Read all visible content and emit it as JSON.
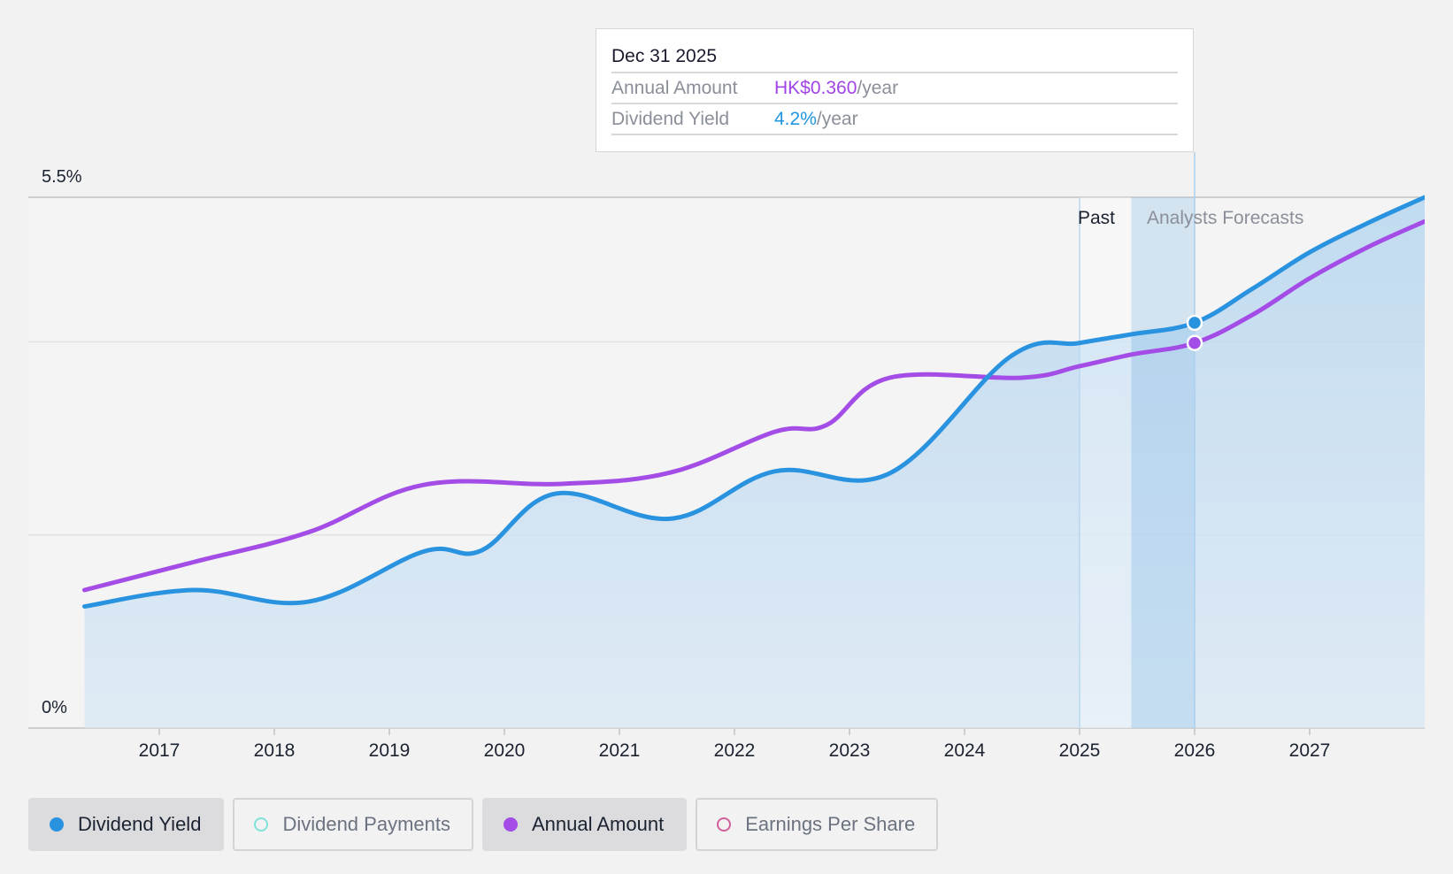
{
  "chart_data": {
    "type": "line",
    "title": "",
    "y_axis": {
      "min_label": "0%",
      "max_label": "5.5%",
      "ylim": [
        0,
        5.5
      ]
    },
    "x_ticks": [
      "2017",
      "2018",
      "2019",
      "2020",
      "2021",
      "2022",
      "2023",
      "2024",
      "2025",
      "2026",
      "2027"
    ],
    "past_label": "Past",
    "forecast_label": "Analysts Forecasts",
    "series": [
      {
        "name": "Dividend Yield",
        "color": "#2a93e0",
        "unit": "%",
        "points": [
          [
            2016.35,
            1.26
          ],
          [
            2017.3,
            1.43
          ],
          [
            2018.3,
            1.31
          ],
          [
            2019.3,
            1.83
          ],
          [
            2019.8,
            1.84
          ],
          [
            2020.45,
            2.43
          ],
          [
            2021.45,
            2.17
          ],
          [
            2022.35,
            2.66
          ],
          [
            2023.35,
            2.64
          ],
          [
            2024.4,
            3.85
          ],
          [
            2025.0,
            3.99
          ],
          [
            2025.45,
            4.08
          ],
          [
            2026.0,
            4.2
          ],
          [
            2026.5,
            4.55
          ],
          [
            2027.0,
            4.93
          ],
          [
            2027.5,
            5.23
          ],
          [
            2028.0,
            5.5
          ]
        ]
      },
      {
        "name": "Annual Amount",
        "color": "#a34de6",
        "unit": "HK$",
        "points": [
          [
            2016.35,
            1.43
          ],
          [
            2017.3,
            1.72
          ],
          [
            2018.3,
            2.03
          ],
          [
            2019.3,
            2.52
          ],
          [
            2020.5,
            2.53
          ],
          [
            2021.45,
            2.65
          ],
          [
            2022.35,
            3.07
          ],
          [
            2022.8,
            3.14
          ],
          [
            2023.35,
            3.63
          ],
          [
            2024.5,
            3.63
          ],
          [
            2025.0,
            3.75
          ],
          [
            2025.45,
            3.87
          ],
          [
            2026.0,
            3.99
          ],
          [
            2026.5,
            4.28
          ],
          [
            2027.0,
            4.66
          ],
          [
            2027.5,
            4.98
          ],
          [
            2028.0,
            5.25
          ]
        ]
      }
    ],
    "highlight": {
      "date": "Dec 31 2025",
      "annual_amount_label": "Annual Amount",
      "annual_amount_value": "HK$0.360",
      "dividend_yield_label": "Dividend Yield",
      "dividend_yield_value": "4.2%",
      "per_year": "/year",
      "x": 2026.0,
      "yield_y": 4.2,
      "amount_y": 3.99
    }
  },
  "legend": [
    {
      "label": "Dividend Yield",
      "color": "#2a93e0",
      "active": true,
      "filled": true
    },
    {
      "label": "Dividend Payments",
      "color": "#7fe3d9",
      "active": false,
      "filled": false
    },
    {
      "label": "Annual Amount",
      "color": "#a34de6",
      "active": true,
      "filled": true
    },
    {
      "label": "Earnings Per Share",
      "color": "#d0609a",
      "active": false,
      "filled": false
    }
  ]
}
